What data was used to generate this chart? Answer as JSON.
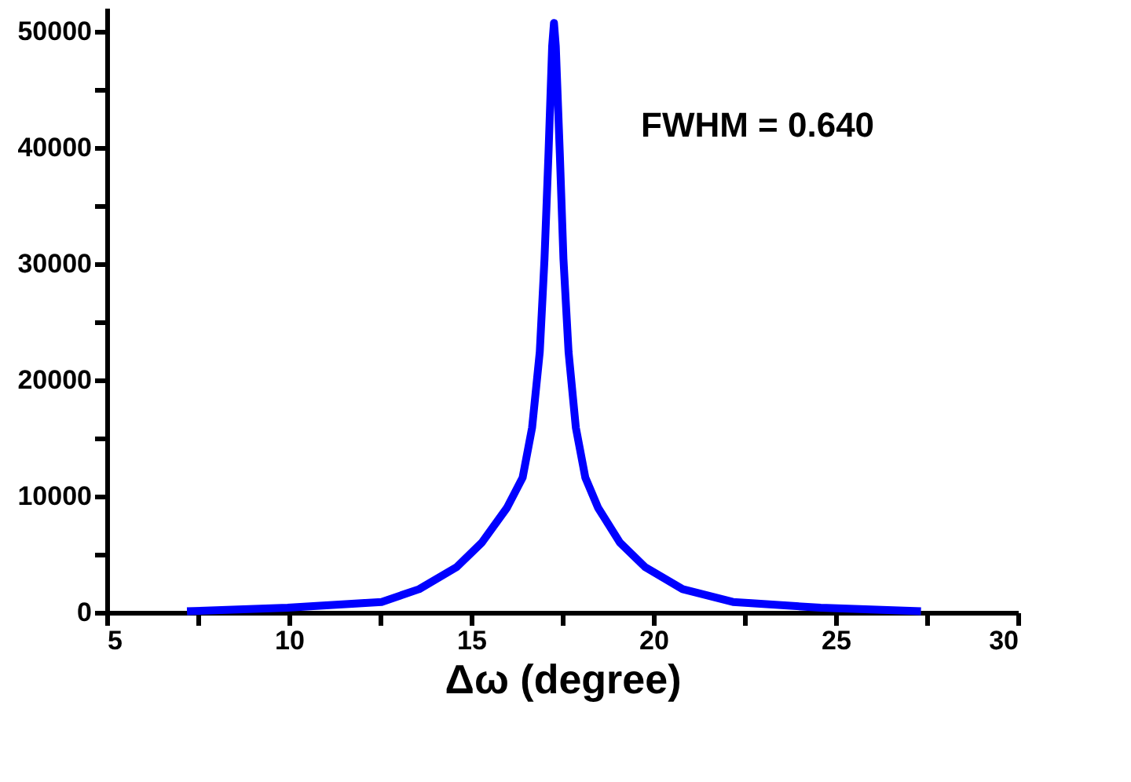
{
  "chart_data": {
    "type": "line",
    "xlabel": "Δω (degree)",
    "x": [
      7.2,
      9.96,
      12.54,
      13.57,
      14.6,
      15.29,
      15.98,
      16.41,
      16.67,
      16.88,
      17.01,
      17.12,
      17.22,
      17.27,
      17.32,
      17.43,
      17.53,
      17.67,
      17.87,
      18.13,
      18.48,
      19.08,
      19.77,
      20.8,
      22.18,
      24.59,
      27.34
    ],
    "series": [
      {
        "color": "#0000ff",
        "values": [
          100,
          400,
          900,
          2000,
          3900,
          6000,
          9000,
          11600,
          15900,
          22400,
          30400,
          39500,
          48700,
          50700,
          48700,
          39500,
          30400,
          22400,
          15900,
          11600,
          9000,
          6000,
          3900,
          2000,
          900,
          400,
          100
        ]
      }
    ],
    "xlim": [
      5,
      30
    ],
    "ylim": [
      0,
      52000
    ],
    "xticks": [
      5,
      {
        "value": 7.5,
        "label": null
      },
      10,
      {
        "value": 12.5,
        "label": null
      },
      15,
      {
        "value": 17.5,
        "label": null
      },
      20,
      {
        "value": 22.5,
        "label": null
      },
      25,
      {
        "value": 27.5,
        "label": null
      },
      30
    ],
    "yticks": [
      0,
      {
        "value": 5000,
        "label": null
      },
      10000,
      {
        "value": 15000,
        "label": null
      },
      20000,
      {
        "value": 25000,
        "label": null
      },
      30000,
      {
        "value": 35000,
        "label": null
      },
      40000,
      {
        "value": 45000,
        "label": null
      },
      50000
    ],
    "annotations": [
      "FWHM = 0.640"
    ],
    "grid": false,
    "marker": "none",
    "line_style": "solid"
  }
}
